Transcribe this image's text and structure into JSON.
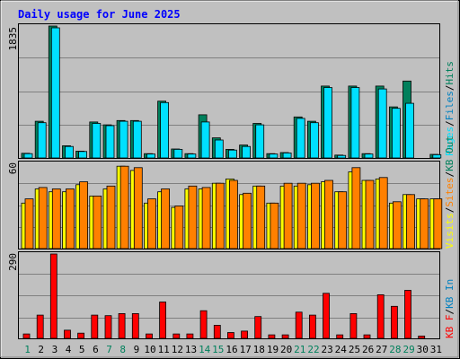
{
  "chart_data": [
    {
      "type": "bar",
      "title": "Daily usage for June 2025",
      "categories": [
        "1",
        "2",
        "3",
        "4",
        "5",
        "6",
        "7",
        "8",
        "9",
        "10",
        "11",
        "12",
        "13",
        "14",
        "15",
        "16",
        "17",
        "18",
        "19",
        "20",
        "21",
        "22",
        "23",
        "24",
        "25",
        "26",
        "27",
        "28",
        "29",
        "30",
        "31"
      ],
      "weekend_days": [
        "1",
        "7",
        "8",
        "14",
        "15",
        "21",
        "22",
        "28",
        "29"
      ],
      "ymax_label": "1835",
      "ylim": [
        0,
        1835
      ],
      "series": [
        {
          "name": "Hits",
          "color": "#00805c",
          "values": [
            65,
            510,
            1835,
            170,
            95,
            500,
            460,
            520,
            520,
            60,
            790,
            125,
            60,
            600,
            280,
            120,
            180,
            480,
            60,
            75,
            570,
            510,
            1000,
            40,
            1000,
            60,
            1000,
            710,
            1070,
            0,
            50
          ]
        },
        {
          "name": "Files",
          "color": "#0080c0",
          "values": [
            0,
            0,
            0,
            0,
            0,
            0,
            0,
            0,
            0,
            0,
            0,
            0,
            0,
            0,
            0,
            0,
            0,
            0,
            0,
            0,
            0,
            0,
            0,
            0,
            0,
            0,
            0,
            0,
            0,
            0,
            0
          ]
        },
        {
          "name": "Pages",
          "color": "#00e0ff",
          "values": [
            60,
            490,
            1810,
            160,
            90,
            480,
            450,
            510,
            510,
            55,
            770,
            120,
            55,
            500,
            250,
            110,
            160,
            460,
            55,
            70,
            550,
            490,
            980,
            35,
            980,
            55,
            960,
            690,
            760,
            0,
            45
          ]
        }
      ]
    },
    {
      "type": "bar",
      "categories": [
        "1",
        "2",
        "3",
        "4",
        "5",
        "6",
        "7",
        "8",
        "9",
        "10",
        "11",
        "12",
        "13",
        "14",
        "15",
        "16",
        "17",
        "18",
        "19",
        "20",
        "21",
        "22",
        "23",
        "24",
        "25",
        "26",
        "27",
        "28",
        "29",
        "30",
        "31"
      ],
      "ymax_label": "60",
      "ylim": [
        0,
        60
      ],
      "series": [
        {
          "name": "Visits",
          "color": "#ffff00",
          "values": [
            32,
            42,
            40,
            40,
            45,
            37,
            42,
            58,
            55,
            32,
            40,
            29,
            42,
            42,
            46,
            49,
            38,
            44,
            32,
            44,
            44,
            45,
            47,
            40,
            54,
            48,
            49,
            32,
            38,
            35,
            35
          ]
        },
        {
          "name": "Sites",
          "color": "#ff8000",
          "values": [
            35,
            43,
            42,
            42,
            47,
            37,
            44,
            58,
            57,
            35,
            42,
            30,
            44,
            43,
            46,
            48,
            39,
            44,
            32,
            46,
            46,
            46,
            48,
            40,
            57,
            48,
            50,
            33,
            38,
            35,
            35
          ]
        },
        {
          "name": "KB Out",
          "color": "#00805c",
          "values": [
            0,
            0,
            0,
            0,
            0,
            0,
            0,
            0,
            0,
            0,
            0,
            0,
            0,
            0,
            0,
            0,
            0,
            0,
            0,
            0,
            0,
            0,
            0,
            0,
            0,
            0,
            0,
            0,
            0,
            0,
            0
          ]
        }
      ],
      "series_overrides": {
        "Visits": {
          "values": [
            32,
            42,
            40,
            40,
            45,
            37,
            42,
            58,
            55,
            32,
            40,
            29,
            42,
            42,
            46,
            49,
            38,
            44,
            32,
            44,
            44,
            45,
            47,
            40,
            54,
            48,
            49,
            32,
            38,
            35,
            35
          ]
        },
        "Sites": {
          "values": [
            35,
            43,
            42,
            42,
            47,
            37,
            44,
            58,
            57,
            35,
            42,
            30,
            44,
            43,
            46,
            48,
            39,
            44,
            32,
            46,
            46,
            46,
            48,
            40,
            57,
            48,
            50,
            33,
            38,
            35,
            35
          ]
        }
      }
    },
    {
      "type": "bar",
      "categories": [
        "1",
        "2",
        "3",
        "4",
        "5",
        "6",
        "7",
        "8",
        "9",
        "10",
        "11",
        "12",
        "13",
        "14",
        "15",
        "16",
        "17",
        "18",
        "19",
        "20",
        "21",
        "22",
        "23",
        "24",
        "25",
        "26",
        "27",
        "28",
        "29",
        "30",
        "31"
      ],
      "ymax_label": "290",
      "ylim": [
        0,
        290
      ],
      "series": [
        {
          "name": "KB In",
          "color": "#0080c0",
          "values": [
            0,
            0,
            0,
            0,
            0,
            0,
            0,
            0,
            0,
            0,
            0,
            0,
            0,
            0,
            0,
            0,
            0,
            0,
            0,
            0,
            0,
            0,
            0,
            0,
            0,
            0,
            0,
            0,
            0,
            0,
            0
          ]
        },
        {
          "name": "KB F",
          "color": "#ff0000",
          "values": [
            15,
            80,
            290,
            28,
            18,
            80,
            78,
            85,
            85,
            15,
            125,
            15,
            15,
            95,
            45,
            20,
            25,
            75,
            12,
            12,
            90,
            80,
            155,
            12,
            85,
            12,
            150,
            110,
            165,
            8,
            0
          ]
        }
      ]
    }
  ],
  "labels": {
    "right_top": [
      "Pages",
      "/",
      "Files",
      "/",
      "Hits"
    ],
    "right_mid": [
      "Visits",
      "/",
      "Sites",
      "/",
      "KB Out"
    ],
    "right_bot": [
      "KB F",
      "/",
      "KB In"
    ]
  },
  "colors": {
    "background": "#c0c0c0",
    "plot_bg": "#c0c0c0",
    "title": "#0000ff",
    "weekday": "#000000",
    "weekend": "#00805c",
    "gridline": "#808080"
  }
}
